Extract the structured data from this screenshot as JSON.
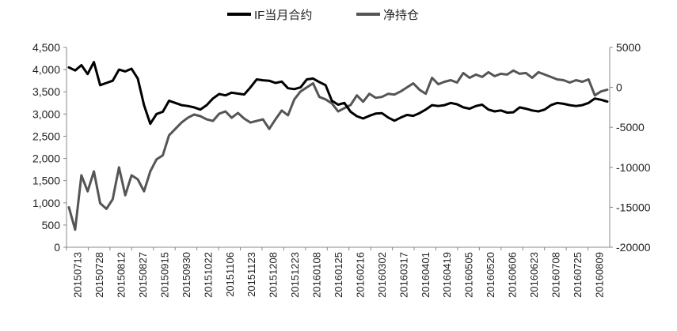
{
  "chart_data": {
    "type": "line",
    "legend_position": "top-center",
    "grid": false,
    "series": [
      {
        "name": "IF当月合约",
        "axis": "left",
        "color": "#000000",
        "values": [
          4050,
          3980,
          4100,
          3900,
          4170,
          3650,
          3700,
          3750,
          4000,
          3960,
          4020,
          3800,
          3200,
          2780,
          3000,
          3050,
          3300,
          3250,
          3200,
          3180,
          3150,
          3100,
          3200,
          3350,
          3450,
          3420,
          3480,
          3460,
          3440,
          3600,
          3780,
          3760,
          3750,
          3700,
          3730,
          3580,
          3560,
          3600,
          3780,
          3800,
          3720,
          3650,
          3300,
          3210,
          3250,
          3050,
          2950,
          2900,
          2960,
          3010,
          3020,
          2920,
          2850,
          2920,
          2980,
          2960,
          3020,
          3100,
          3200,
          3180,
          3200,
          3250,
          3220,
          3150,
          3120,
          3180,
          3210,
          3100,
          3060,
          3080,
          3030,
          3040,
          3150,
          3120,
          3080,
          3060,
          3100,
          3200,
          3250,
          3230,
          3200,
          3180,
          3200,
          3250,
          3350,
          3320,
          3280
        ]
      },
      {
        "name": "净持仓",
        "axis": "right",
        "color": "#555555",
        "values": [
          -15000,
          -17800,
          -11000,
          -13000,
          -10500,
          -14500,
          -15200,
          -14000,
          -10000,
          -13500,
          -11000,
          -11500,
          -13000,
          -10500,
          -9000,
          -8500,
          -6000,
          -5200,
          -4400,
          -3800,
          -3400,
          -3600,
          -4000,
          -4200,
          -3300,
          -3000,
          -3800,
          -3200,
          -3900,
          -4400,
          -4200,
          -4000,
          -5200,
          -4000,
          -2900,
          -3500,
          -1500,
          -500,
          0,
          500,
          -1200,
          -1500,
          -2000,
          -3000,
          -2600,
          -2200,
          -1000,
          -1800,
          -800,
          -1300,
          -1200,
          -800,
          -900,
          -500,
          0,
          500,
          -300,
          -800,
          1200,
          400,
          700,
          900,
          600,
          1800,
          1200,
          1600,
          1300,
          1900,
          1400,
          1700,
          1600,
          2100,
          1700,
          1800,
          1200,
          1900,
          1600,
          1300,
          1000,
          900,
          600,
          900,
          700,
          1000,
          -1000,
          -500,
          -300
        ]
      }
    ],
    "x_labels": [
      "20150713",
      "20150728",
      "20150812",
      "20150827",
      "20150915",
      "20150930",
      "20151022",
      "20151106",
      "20151123",
      "20151208",
      "20151223",
      "20160108",
      "20160125",
      "20160216",
      "20160302",
      "20160317",
      "20160401",
      "20160419",
      "20160505",
      "20160520",
      "20160606",
      "20160623",
      "20160708",
      "20160725",
      "20160809"
    ],
    "y_left": {
      "min": 0,
      "max": 4500,
      "ticks": [
        "0",
        "500",
        "1,000",
        "1,500",
        "2,000",
        "2,500",
        "3,000",
        "3,500",
        "4,000",
        "4,500"
      ]
    },
    "y_right": {
      "min": -20000,
      "max": 5000,
      "ticks": [
        "-20000",
        "-15000",
        "-10000",
        "-5000",
        "0",
        "5000"
      ]
    }
  }
}
